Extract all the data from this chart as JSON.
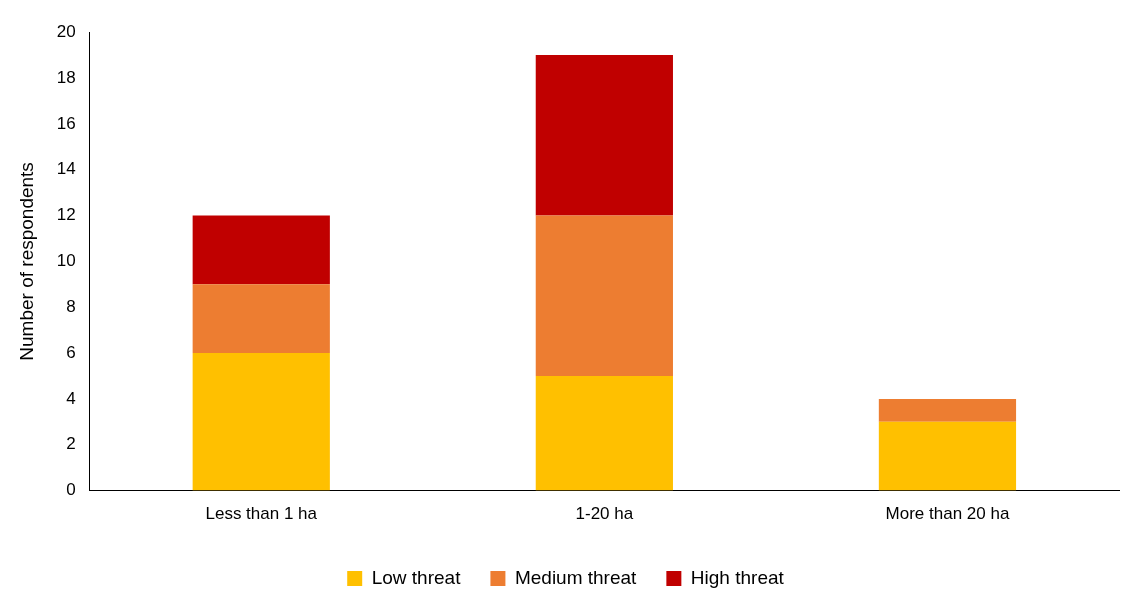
{
  "chart_data": {
    "type": "bar",
    "stacked": true,
    "ylabel": "Number of respondents",
    "categories": [
      "Less than 1 ha",
      "1-20 ha",
      "More than 20 ha"
    ],
    "series": [
      {
        "name": "Low threat",
        "color": "#ffc000",
        "values": [
          6,
          5,
          3
        ]
      },
      {
        "name": "Medium threat",
        "color": "#ed7d31",
        "values": [
          3,
          7,
          1
        ]
      },
      {
        "name": "High threat",
        "color": "#c00000",
        "values": [
          3,
          7,
          0
        ]
      }
    ],
    "ylim": [
      0,
      20
    ],
    "yticks": [
      0,
      2,
      4,
      6,
      8,
      10,
      12,
      14,
      16,
      18,
      20
    ],
    "legend": "bottom"
  }
}
